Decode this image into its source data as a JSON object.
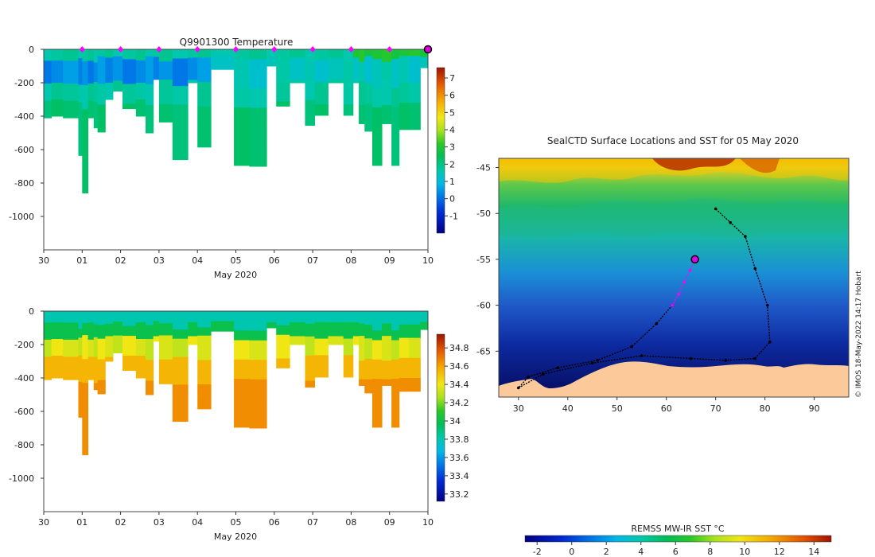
{
  "chart_data": [
    {
      "type": "heatmap",
      "name": "temperature-section",
      "title": "Q9901300  Temperature",
      "xlabel": "May 2020",
      "x_ticks": [
        "30",
        "01",
        "02",
        "03",
        "04",
        "05",
        "06",
        "07",
        "08",
        "09",
        "10"
      ],
      "y_ticks": [
        0,
        -200,
        -400,
        -600,
        -800,
        -1000
      ],
      "y_tick_labels": [
        "0",
        "-200",
        "-400",
        "-600",
        "-800",
        "-1000"
      ],
      "ylim": [
        -1200,
        0
      ],
      "colorbar": {
        "ticks": [
          7,
          6,
          5,
          4,
          3,
          2,
          1,
          0,
          -1
        ],
        "labels": [
          "7",
          "6",
          "5",
          "4",
          "3",
          "2",
          "1",
          "0",
          "-1"
        ],
        "min": -2,
        "max": 7.6
      },
      "profiles": [
        {
          "day": 0.0,
          "depth": 410
        },
        {
          "day": 0.2,
          "depth": 400
        },
        {
          "day": 0.5,
          "depth": 410
        },
        {
          "day": 0.9,
          "depth": 635
        },
        {
          "day": 1.0,
          "depth": 860
        },
        {
          "day": 1.15,
          "depth": 410
        },
        {
          "day": 1.3,
          "depth": 470
        },
        {
          "day": 1.4,
          "depth": 495
        },
        {
          "day": 1.6,
          "depth": 300
        },
        {
          "day": 1.8,
          "depth": 250
        },
        {
          "day": 2.05,
          "depth": 355
        },
        {
          "day": 2.4,
          "depth": 400
        },
        {
          "day": 2.65,
          "depth": 500
        },
        {
          "day": 2.85,
          "depth": 180
        },
        {
          "day": 3.0,
          "depth": 435
        },
        {
          "day": 3.35,
          "depth": 660
        },
        {
          "day": 3.75,
          "depth": 200
        },
        {
          "day": 4.0,
          "depth": 585
        },
        {
          "day": 4.35,
          "depth": 120
        },
        {
          "day": 4.95,
          "depth": 695
        },
        {
          "day": 5.35,
          "depth": 700
        },
        {
          "day": 5.8,
          "depth": 100
        },
        {
          "day": 6.05,
          "depth": 340
        },
        {
          "day": 6.4,
          "depth": 200
        },
        {
          "day": 6.8,
          "depth": 455
        },
        {
          "day": 7.05,
          "depth": 395
        },
        {
          "day": 7.4,
          "depth": 200
        },
        {
          "day": 7.8,
          "depth": 395
        },
        {
          "day": 8.05,
          "depth": 200
        },
        {
          "day": 8.2,
          "depth": 445
        },
        {
          "day": 8.35,
          "depth": 490
        },
        {
          "day": 8.55,
          "depth": 695
        },
        {
          "day": 8.8,
          "depth": 445
        },
        {
          "day": 9.05,
          "depth": 695
        },
        {
          "day": 9.25,
          "depth": 480
        },
        {
          "day": 9.5,
          "depth": 480
        },
        {
          "day": 9.8,
          "depth": 110
        }
      ],
      "surface_markers": [
        1,
        2,
        3,
        4,
        5,
        6,
        7,
        8,
        9
      ],
      "current_marker_day": 10
    },
    {
      "type": "heatmap",
      "name": "salinity-section",
      "title": "",
      "xlabel": "May 2020",
      "x_ticks": [
        "30",
        "01",
        "02",
        "03",
        "04",
        "05",
        "06",
        "07",
        "08",
        "09",
        "10"
      ],
      "y_ticks": [
        0,
        -200,
        -400,
        -600,
        -800,
        -1000
      ],
      "y_tick_labels": [
        "0",
        "-200",
        "-400",
        "-600",
        "-800",
        "-1000"
      ],
      "ylim": [
        -1200,
        0
      ],
      "colorbar": {
        "ticks": [
          34.8,
          34.6,
          34.4,
          34.2,
          34,
          33.8,
          33.6,
          33.4,
          33.2
        ],
        "labels": [
          "34.8",
          "34.6",
          "34.4",
          "34.2",
          "34",
          "33.8",
          "33.6",
          "33.4",
          "33.2"
        ],
        "min": 33.12,
        "max": 34.95
      }
    },
    {
      "type": "heatmap",
      "name": "sst-map",
      "title": "SealCTD Surface Locations and SST for 05 May 2020",
      "x_ticks": [
        30,
        40,
        50,
        60,
        70,
        80,
        90
      ],
      "y_ticks": [
        -45,
        -50,
        -55,
        -60,
        -65
      ],
      "y_tick_labels": [
        "-45",
        "-50",
        "-55",
        "-60",
        "-65"
      ],
      "xlim": [
        26,
        97
      ],
      "ylim": [
        -70,
        -44
      ],
      "colorbar": {
        "label": "REMSS MW-IR SST °C",
        "ticks": [
          -2,
          0,
          2,
          4,
          6,
          8,
          10,
          12,
          14
        ],
        "labels": [
          "-2",
          "0",
          "2",
          "4",
          "6",
          "8",
          "10",
          "12",
          "14"
        ],
        "min": -2.7,
        "max": 15
      },
      "current_position": {
        "lon": 65.8,
        "lat": -55.0
      },
      "recent_track": [
        {
          "lon": 65.8,
          "lat": -55.0
        },
        {
          "lon": 64.8,
          "lat": -56.2
        },
        {
          "lon": 63.6,
          "lat": -57.5
        },
        {
          "lon": 62.5,
          "lat": -58.8
        },
        {
          "lon": 61.2,
          "lat": -60.0
        }
      ],
      "track": [
        {
          "lon": 61.2,
          "lat": -60.0
        },
        {
          "lon": 58.0,
          "lat": -62.0
        },
        {
          "lon": 53.0,
          "lat": -64.5
        },
        {
          "lon": 46.0,
          "lat": -66.0
        },
        {
          "lon": 38.0,
          "lat": -66.8
        },
        {
          "lon": 32.0,
          "lat": -67.8
        },
        {
          "lon": 30.0,
          "lat": -69.0
        },
        {
          "lon": 35.0,
          "lat": -67.5
        },
        {
          "lon": 45.0,
          "lat": -66.3
        },
        {
          "lon": 55.0,
          "lat": -65.5
        },
        {
          "lon": 65.0,
          "lat": -65.8
        },
        {
          "lon": 72.0,
          "lat": -66.0
        },
        {
          "lon": 78.0,
          "lat": -65.8
        },
        {
          "lon": 81.0,
          "lat": -64.0
        },
        {
          "lon": 80.5,
          "lat": -60.0
        },
        {
          "lon": 78.0,
          "lat": -56.0
        },
        {
          "lon": 76.0,
          "lat": -52.5
        },
        {
          "lon": 73.0,
          "lat": -51.0
        },
        {
          "lon": 70.0,
          "lat": -49.5
        }
      ],
      "credit": "© IMOS 18-May-2022 14:17 Hobart"
    }
  ]
}
